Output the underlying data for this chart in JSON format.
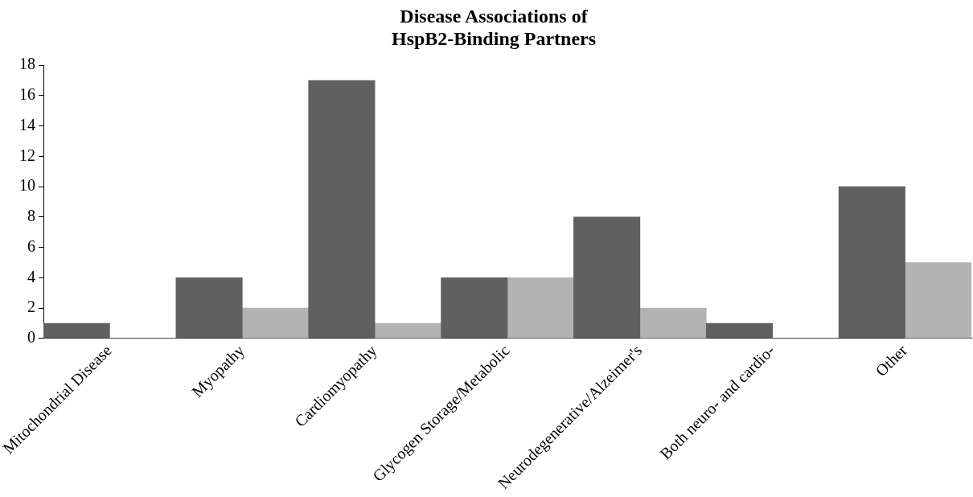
{
  "chart_data": {
    "type": "bar",
    "title": "Disease Associations of\nHspB2-Binding Partners",
    "categories": [
      "Mitochondrial Disease",
      "Myopathy",
      "Cardiomyopathy",
      "Glycogen Storage/Metabolic",
      "Neurodegenerative/Alzeimer's",
      "Both neuro- and cardio-",
      "Other"
    ],
    "series": [
      {
        "color": "#606060",
        "values": [
          1,
          4,
          17,
          4,
          8,
          1,
          10
        ]
      },
      {
        "color": "#b3b3b3",
        "values": [
          0,
          2,
          1,
          4,
          2,
          0,
          5
        ]
      }
    ],
    "ylim": [
      0,
      18
    ],
    "yticks": [
      0,
      2,
      4,
      6,
      8,
      10,
      12,
      14,
      16,
      18
    ],
    "grid": false,
    "legend": false
  }
}
